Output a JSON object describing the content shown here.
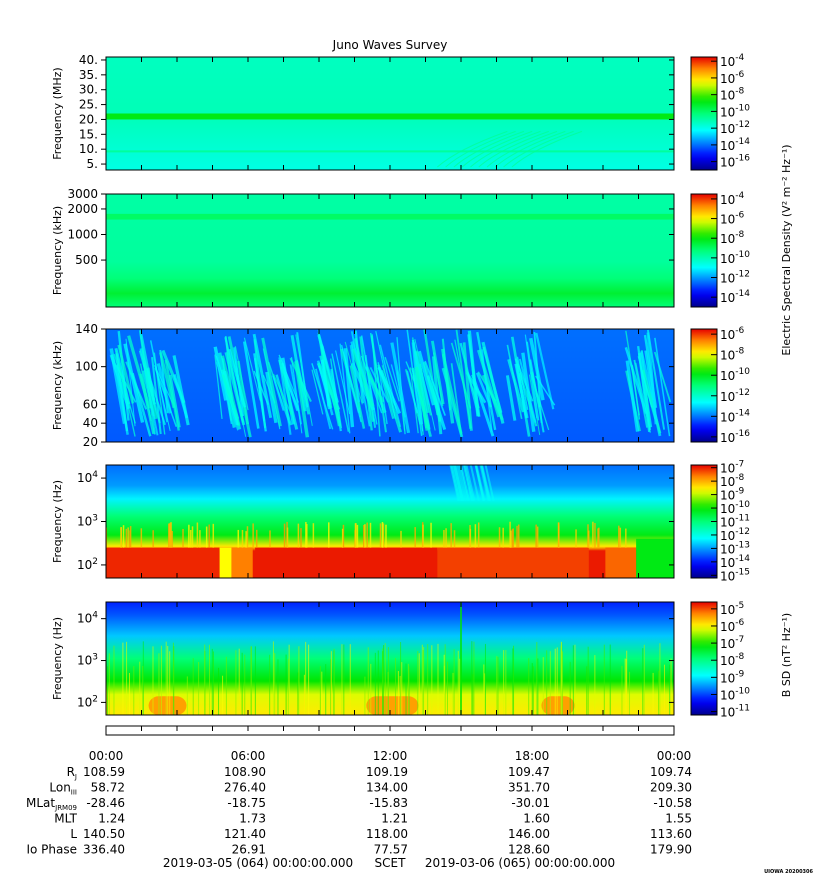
{
  "title": "Juno Waves Survey",
  "footer_left": "2019-03-05 (064) 00:00:00.000",
  "footer_mid": "SCET",
  "footer_right": "2019-03-06 (065) 00:00:00.000",
  "watermark": "UIOWA 20200306",
  "colorbar_side_label_e": "Electric Spectral Density (V² m⁻² Hz⁻¹)",
  "colorbar_side_label_b": "B SD (nT² Hz⁻¹)",
  "chart_data": [
    {
      "type": "heatmap",
      "panel": "hfwbr",
      "ylabel": "Frequency (MHz)",
      "y_ticks": [
        "40.",
        "35.",
        "30.",
        "25.",
        "20.",
        "15.",
        "10.",
        "5."
      ],
      "y_tick_values": [
        40,
        35,
        30,
        25,
        20,
        15,
        10,
        5
      ],
      "ylim": [
        3,
        41
      ],
      "yscale": "linear",
      "x_range_hours": [
        0,
        24
      ],
      "colorbar_exponents": [
        -4,
        -6,
        -8,
        -10,
        -12,
        -14,
        -16
      ],
      "colorbar_range": [
        -17,
        -3.5
      ],
      "features": "uniform cyan background with strong band near 21 MHz; faint emission arcs 14:00-18:00 below 15 MHz"
    },
    {
      "type": "heatmap",
      "panel": "hf",
      "ylabel": "Frequency (kHz)",
      "y_ticks": [
        "3000",
        "2000",
        "1000",
        "500"
      ],
      "y_tick_values": [
        3000,
        2000,
        1000,
        500
      ],
      "ylim": [
        140,
        3000
      ],
      "yscale": "log",
      "x_range_hours": [
        0,
        24
      ],
      "colorbar_exponents": [
        -4,
        -6,
        -8,
        -10,
        -12,
        -14
      ],
      "colorbar_range": [
        -15,
        -3.5
      ],
      "features": "cyan-green background, green band near 1600 kHz, brighter green band near 200 kHz"
    },
    {
      "type": "heatmap",
      "panel": "lf",
      "ylabel": "Frequency (kHz)",
      "y_ticks": [
        "140",
        "100",
        "60",
        "40",
        "20"
      ],
      "y_tick_values": [
        140,
        100,
        60,
        40,
        20
      ],
      "ylim": [
        20,
        140
      ],
      "yscale": "linear",
      "x_range_hours": [
        0,
        24
      ],
      "colorbar_exponents": [
        -6,
        -8,
        -10,
        -12,
        -14,
        -16
      ],
      "colorbar_range": [
        -16.5,
        -5.5
      ],
      "features": "blue background with cyan striated emissions 0-3h, 4.5-8h, 8.5-12.5h, 12.5-16h, 17-18h"
    },
    {
      "type": "heatmap",
      "panel": "e_lf",
      "ylabel": "Frequency (Hz)",
      "y_ticks": [
        "10^4",
        "10^3",
        "10^2"
      ],
      "y_tick_values": [
        10000,
        1000,
        100
      ],
      "ylim": [
        50,
        20000
      ],
      "yscale": "log",
      "x_range_hours": [
        0,
        24
      ],
      "colorbar_exponents": [
        -7,
        -8,
        -9,
        -10,
        -11,
        -12,
        -13,
        -14,
        -15
      ],
      "colorbar_range": [
        -15.2,
        -6.8
      ],
      "features": "red emission below ~250 Hz except gaps near 5h and 22h; yellow/green up to ~1 kHz; blue above"
    },
    {
      "type": "heatmap",
      "panel": "b_lf",
      "ylabel": "Frequency (Hz)",
      "y_ticks": [
        "10^4",
        "10^3",
        "10^2"
      ],
      "y_tick_values": [
        10000,
        1000,
        100
      ],
      "ylim": [
        50,
        25000
      ],
      "yscale": "log",
      "x_range_hours": [
        0,
        24
      ],
      "colorbar_exponents": [
        -5,
        -6,
        -7,
        -8,
        -9,
        -10,
        -11
      ],
      "colorbar_range": [
        -11.2,
        -4.6
      ],
      "features": "yellow/orange below ~150 Hz with orange humps near 2.5h, 12h, 19h; green mid band; blue above ~5 kHz; spike at 15h"
    }
  ],
  "time_axis": {
    "ticks": [
      "00:00",
      "06:00",
      "12:00",
      "18:00",
      "00:00"
    ],
    "rows": [
      {
        "label": "R",
        "sub": "J",
        "values": [
          "108.59",
          "108.90",
          "109.19",
          "109.47",
          "109.74"
        ]
      },
      {
        "label": "Lon",
        "sub": "III",
        "values": [
          "58.72",
          "276.40",
          "134.00",
          "351.70",
          "209.30"
        ]
      },
      {
        "label": "MLat",
        "sub": "JRM09",
        "values": [
          "-28.46",
          "-18.75",
          "-15.83",
          "-30.01",
          "-10.58"
        ]
      },
      {
        "label": "MLT",
        "sub": "",
        "values": [
          "1.24",
          "1.73",
          "1.21",
          "1.60",
          "1.55"
        ]
      },
      {
        "label": "L",
        "sub": "",
        "values": [
          "140.50",
          "121.40",
          "118.00",
          "146.00",
          "113.60"
        ]
      },
      {
        "label": "Io Phase",
        "sub": "",
        "values": [
          "336.40",
          "26.91",
          "77.57",
          "128.60",
          "179.90"
        ]
      }
    ]
  }
}
